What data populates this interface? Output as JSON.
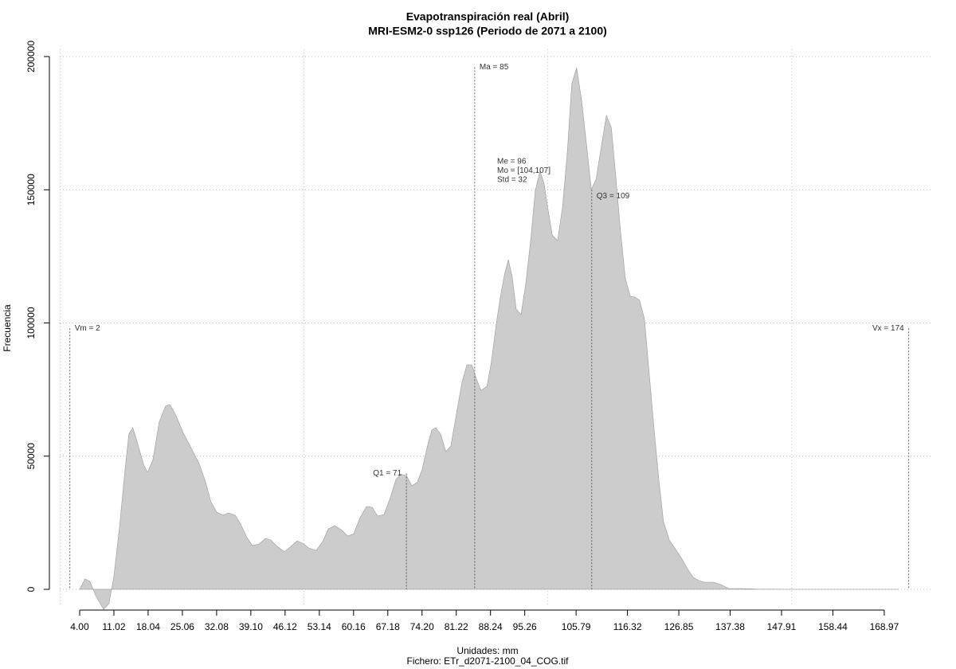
{
  "chart_data": {
    "type": "area",
    "title": "Evapotranspiración real (Abril)",
    "subtitle": "MRI-ESM2-0 ssp126 (Periodo de 2071 a 2100)",
    "xlabel": "Unidades: mm",
    "caption": "Fichero: ETr_d2071-2100_04_COG.tif",
    "ylabel": "Frecuencia",
    "color": "#cccccc",
    "x": [
      4,
      5.1,
      6.1,
      7.3,
      8.9,
      10,
      11,
      12.2,
      13.3,
      14.1,
      14.9,
      15.8,
      17.1,
      17.9,
      19,
      20.3,
      21.6,
      22.5,
      23.6,
      25.2,
      26.9,
      28.5,
      29.8,
      30.9,
      32.1,
      33.4,
      34.5,
      35.9,
      37,
      38.3,
      39.4,
      40.8,
      42.1,
      43.2,
      44.5,
      46,
      47.3,
      48.6,
      49.7,
      51,
      52.5,
      53.8,
      55,
      56.3,
      57.6,
      59,
      60.2,
      61.5,
      62.8,
      64,
      65.1,
      66.4,
      67.7,
      68.8,
      69.8,
      71,
      72.1,
      73.2,
      74.2,
      75.4,
      76.2,
      77,
      78,
      79.1,
      80.1,
      81.1,
      82.4,
      83.4,
      84.4,
      85.3,
      86.3,
      87.5,
      88.4,
      89.3,
      90.2,
      91.1,
      91.9,
      92.7,
      93.5,
      94.5,
      95.5,
      96.5,
      97.4,
      98.4,
      99.2,
      100,
      100.9,
      102,
      103,
      104,
      104.9,
      105.9,
      106.9,
      107.9,
      108.9,
      109.9,
      110.8,
      112,
      113,
      113.9,
      114.9,
      115.9,
      116.9,
      117.9,
      118.8,
      119.8,
      120.8,
      121.8,
      122.8,
      123.7,
      124.9,
      126,
      127.3,
      128.6,
      129.8,
      130.9,
      132.1,
      133.9,
      135.5,
      137.1,
      139.6,
      142.8,
      151,
      171.9
    ],
    "values": [
      0,
      3900,
      3000,
      -2400,
      -7500,
      -5400,
      4500,
      23900,
      44800,
      58300,
      60700,
      55300,
      46900,
      43900,
      48400,
      62800,
      68800,
      69400,
      65800,
      58900,
      52900,
      47200,
      40400,
      32900,
      29000,
      27800,
      28700,
      27800,
      24500,
      19400,
      16400,
      17000,
      19100,
      18500,
      16100,
      14100,
      16100,
      18200,
      17300,
      15500,
      14600,
      17900,
      22700,
      23900,
      22400,
      20000,
      20900,
      26900,
      31100,
      30800,
      27500,
      28100,
      34400,
      41000,
      43300,
      42700,
      38900,
      40100,
      44800,
      54400,
      59800,
      60700,
      58300,
      51700,
      53800,
      64300,
      77700,
      84300,
      84300,
      79200,
      74700,
      76200,
      85200,
      98100,
      109100,
      118100,
      123800,
      117200,
      105200,
      103100,
      115100,
      131500,
      149500,
      157000,
      152500,
      142900,
      133000,
      130900,
      143500,
      164400,
      189800,
      195800,
      183900,
      167400,
      150100,
      154000,
      164400,
      177900,
      173400,
      155500,
      134500,
      116600,
      110000,
      109700,
      108500,
      101600,
      80700,
      59800,
      40400,
      25400,
      18500,
      15500,
      12000,
      7800,
      4500,
      3300,
      2700,
      2700,
      1800,
      300,
      300,
      100,
      0,
      0
    ],
    "xlim": [
      0,
      178
    ],
    "ylim": [
      -7000,
      205000
    ],
    "xticks": [
      {
        "value": 4,
        "label": "4.00"
      },
      {
        "value": 11.02,
        "label": "11.02"
      },
      {
        "value": 18.04,
        "label": "18.04"
      },
      {
        "value": 25.06,
        "label": "25.06"
      },
      {
        "value": 32.08,
        "label": "32.08"
      },
      {
        "value": 39.1,
        "label": "39.10"
      },
      {
        "value": 46.12,
        "label": "46.12"
      },
      {
        "value": 53.14,
        "label": "53.14"
      },
      {
        "value": 60.16,
        "label": "60.16"
      },
      {
        "value": 67.18,
        "label": "67.18"
      },
      {
        "value": 74.2,
        "label": "74.20"
      },
      {
        "value": 81.22,
        "label": "81.22"
      },
      {
        "value": 88.24,
        "label": "88.24"
      },
      {
        "value": 95.26,
        "label": "95.26"
      },
      {
        "value": 105.79,
        "label": "105.79"
      },
      {
        "value": 116.32,
        "label": "116.32"
      },
      {
        "value": 126.85,
        "label": "126.85"
      },
      {
        "value": 137.38,
        "label": "137.38"
      },
      {
        "value": 147.91,
        "label": "147.91"
      },
      {
        "value": 158.44,
        "label": "158.44"
      },
      {
        "value": 168.97,
        "label": "168.97"
      }
    ],
    "yticks": [
      0,
      50000,
      100000,
      150000,
      200000
    ],
    "xgrid": [
      0,
      50,
      100,
      150
    ],
    "grid": true,
    "vlines": [
      {
        "label": "Vm = 2",
        "value": 2,
        "top": 98000
      },
      {
        "label": "Q1 = 71",
        "value": 71,
        "top": 43500
      },
      {
        "label": "Ma = 85",
        "value": 85,
        "top": 196000
      },
      {
        "label": "Q3 = 109",
        "value": 109,
        "top": 150000
      },
      {
        "label": "Vx = 174",
        "value": 174,
        "top": 98000
      }
    ],
    "stats_text": [
      "Me = 96",
      "Mo = [104,107]",
      "Std = 32"
    ]
  }
}
